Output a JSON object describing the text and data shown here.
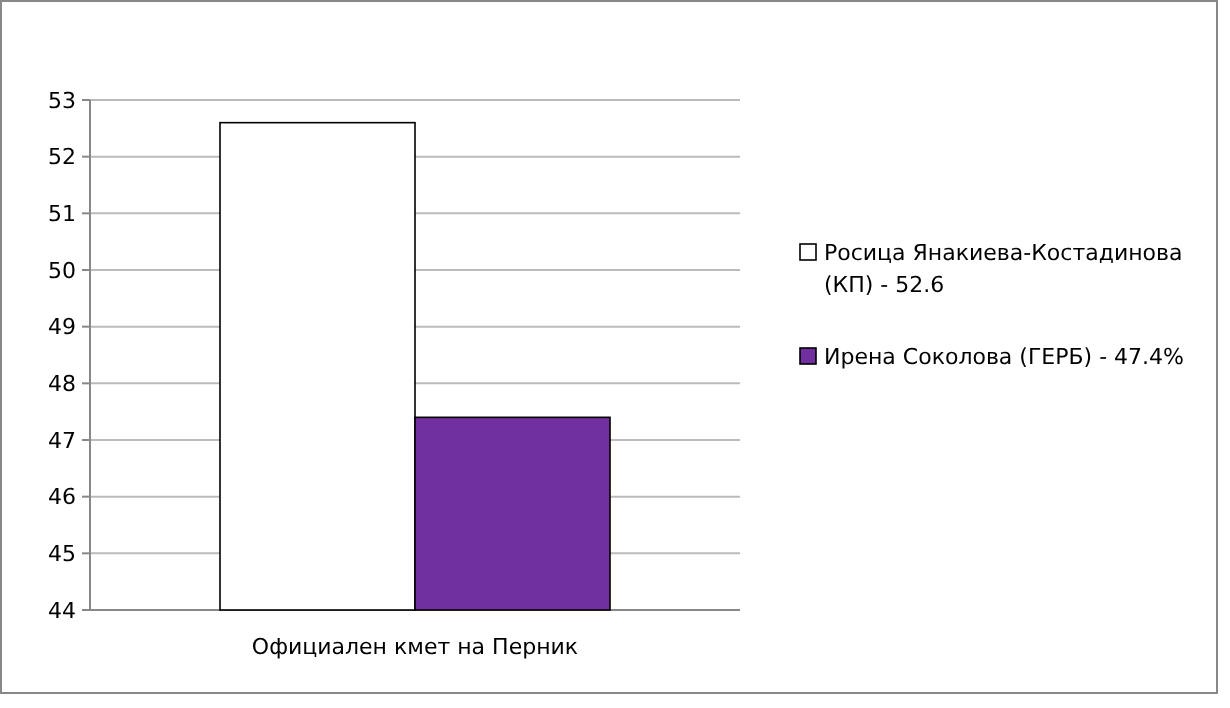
{
  "chart_data": {
    "type": "bar",
    "categories": [
      "Официален кмет на Перник"
    ],
    "series": [
      {
        "name": "Росица Янакиева-Костадинова (КП) - 52.6",
        "color": "#ffffff",
        "values": [
          52.6
        ]
      },
      {
        "name": "Ирена Соколова (ГЕРБ) - 47.4%",
        "color": "#7030a0",
        "values": [
          47.4
        ]
      }
    ],
    "ylim": [
      44,
      53
    ],
    "yticks": [
      44,
      45,
      46,
      47,
      48,
      49,
      50,
      51,
      52,
      53
    ],
    "grid": "y",
    "legend": "right"
  }
}
